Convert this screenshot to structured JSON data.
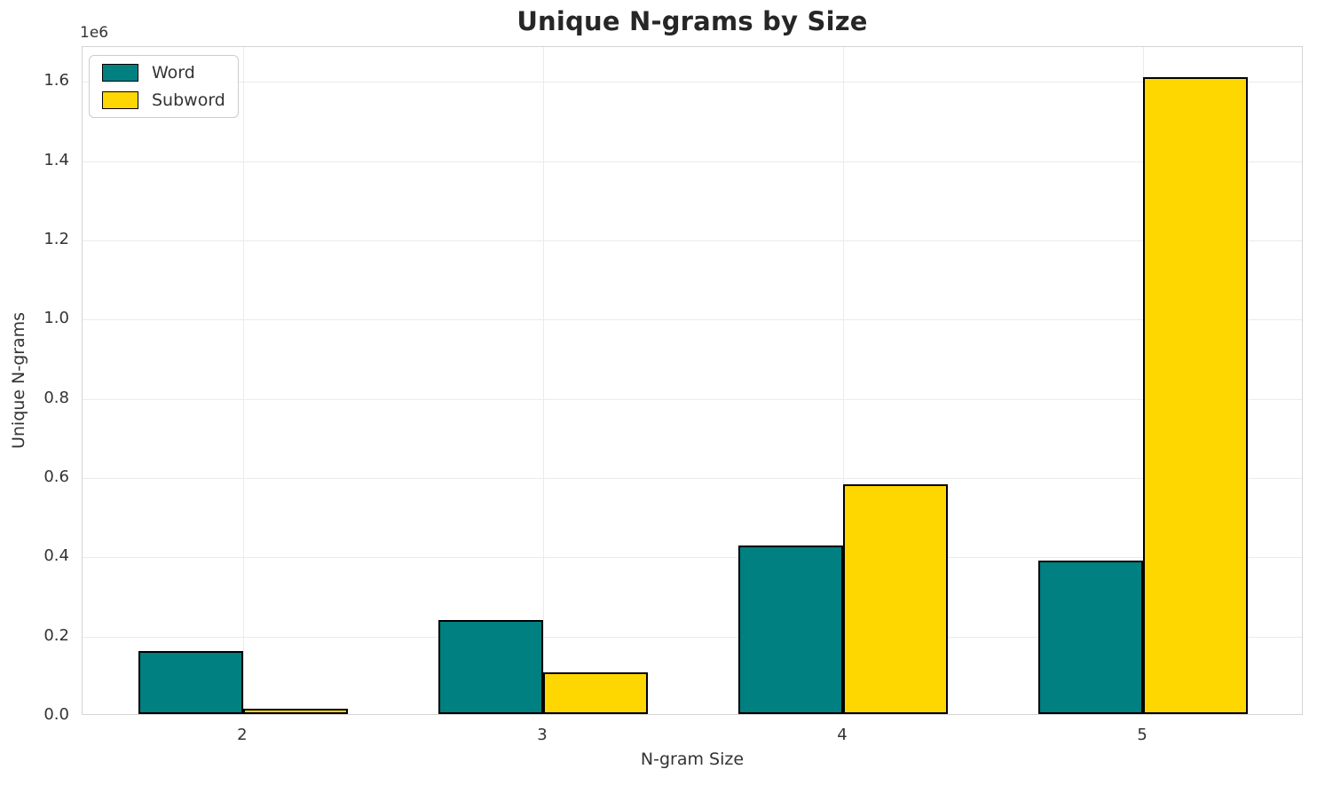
{
  "figure": {
    "background": "#ffffff"
  },
  "chart_data": {
    "type": "bar",
    "title": "Unique N-grams by Size",
    "xlabel": "N-gram Size",
    "ylabel": "Unique N-grams",
    "offset_text": "1e6",
    "categories": [
      "2",
      "3",
      "4",
      "5"
    ],
    "series": [
      {
        "name": "Word",
        "color": "#008080",
        "values": [
          160000,
          238000,
          426000,
          388000
        ]
      },
      {
        "name": "Subword",
        "color": "#FFD700",
        "values": [
          13000,
          105000,
          580000,
          1608000
        ]
      }
    ],
    "bar_edge_color": "#000000",
    "ylim": [
      0,
      1688000
    ],
    "yticks": [
      0,
      200000,
      400000,
      600000,
      800000,
      1000000,
      1200000,
      1400000,
      1600000
    ],
    "ytick_labels": [
      "0.0",
      "0.2",
      "0.4",
      "0.6",
      "0.8",
      "1.0",
      "1.2",
      "1.4",
      "1.6"
    ],
    "grid": true,
    "legend_position": "upper left",
    "legend_entries": [
      "Word",
      "Subword"
    ]
  }
}
